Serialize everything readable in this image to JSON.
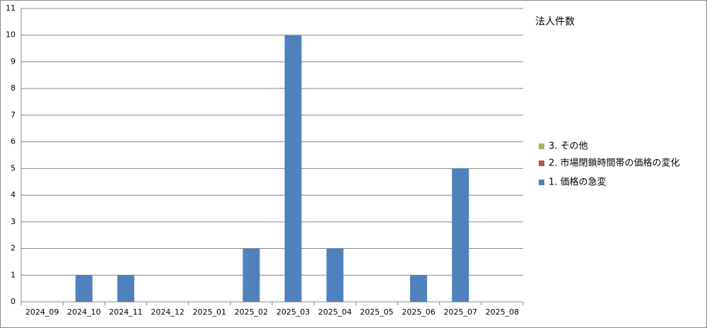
{
  "chart_data": {
    "type": "stacked_bar",
    "title": "法人件数",
    "categories": [
      "2024_09",
      "2024_10",
      "2024_11",
      "2024_12",
      "2025_01",
      "2025_02",
      "2025_03",
      "2025_04",
      "2025_05",
      "2025_06",
      "2025_07",
      "2025_08"
    ],
    "series": [
      {
        "name": "1. 価格の急変",
        "color": "#4f81bd",
        "values": [
          0,
          1,
          1,
          0,
          0,
          2,
          10,
          2,
          0,
          1,
          5,
          0
        ]
      },
      {
        "name": "2. 市場閉鎖時間帯の価格の変化",
        "color": "#c0504d",
        "values": [
          0,
          0,
          0,
          0,
          0,
          0,
          0,
          0,
          0,
          0,
          0,
          0
        ]
      },
      {
        "name": "3. その他",
        "color": "#9bbb59",
        "values": [
          0,
          0,
          0,
          0,
          0,
          0,
          0,
          0,
          0,
          0,
          0,
          0
        ]
      }
    ],
    "ylim": [
      0,
      11
    ],
    "yticks": [
      0,
      1,
      2,
      3,
      4,
      5,
      6,
      7,
      8,
      9,
      10,
      11
    ],
    "grid": true
  }
}
